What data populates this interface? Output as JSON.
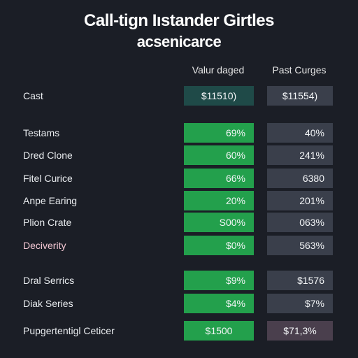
{
  "header": {
    "title": "Call-tign Iıstander Girtles",
    "subtitle": "acsenicarce"
  },
  "columns": {
    "a": "Valur daged",
    "b": "Past Curges"
  },
  "colors": {
    "background": "#1b1e26",
    "green": "#23a04c",
    "teal": "#1f4a48",
    "slate": "#3a3f4b",
    "plum": "#4a3f4d",
    "pink_label": "#f2c6d2"
  },
  "rows": [
    {
      "label": "Cast",
      "a": "$11510)",
      "b": "$11554)"
    },
    {
      "label": "Testams",
      "a": "69%",
      "b": "40%"
    },
    {
      "label": "Dred Clone",
      "a": "60%",
      "b": "241%"
    },
    {
      "label": "Fitel Curice",
      "a": "66%",
      "b": "6380"
    },
    {
      "label": "Anpe Earing",
      "a": "20%",
      "b": "201%"
    },
    {
      "label": "Plion Crate",
      "a": "S00%",
      "b": "063%"
    },
    {
      "label": "Deciverity",
      "a": "$0%",
      "b": "563%"
    },
    {
      "label": "Dral Serrics",
      "a": "$9%",
      "b": "$1576"
    },
    {
      "label": "Diak Series",
      "a": "$4%",
      "b": "$7%"
    },
    {
      "label": "Pupgertentigl Ceticer",
      "a": "$1500",
      "b": "$71,3%"
    }
  ]
}
